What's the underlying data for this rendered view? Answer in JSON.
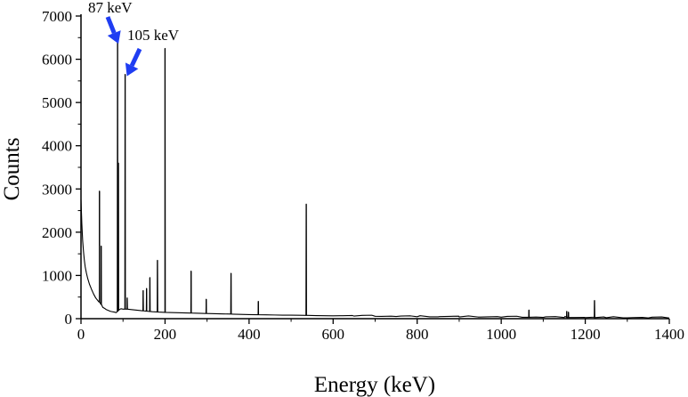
{
  "chart_data": {
    "type": "line",
    "title": "",
    "xlabel": "Energy (keV)",
    "ylabel": "Counts",
    "xlim": [
      0,
      1400
    ],
    "ylim": [
      0,
      7000
    ],
    "x_ticks": [
      0,
      200,
      400,
      600,
      800,
      1000,
      1200,
      1400
    ],
    "y_ticks": [
      0,
      1000,
      2000,
      3000,
      4000,
      5000,
      6000,
      7000
    ],
    "grid": false,
    "legend": "none",
    "colors": {
      "line": "#000000",
      "arrow": "#1f3df2"
    },
    "background": [
      [
        0,
        2750
      ],
      [
        2,
        2200
      ],
      [
        4,
        1800
      ],
      [
        6,
        1550
      ],
      [
        8,
        1350
      ],
      [
        10,
        1200
      ],
      [
        13,
        1050
      ],
      [
        16,
        930
      ],
      [
        20,
        800
      ],
      [
        25,
        680
      ],
      [
        30,
        570
      ],
      [
        35,
        480
      ],
      [
        40,
        420
      ],
      [
        44,
        380
      ],
      [
        48,
        330
      ],
      [
        52,
        260
      ],
      [
        56,
        240
      ],
      [
        60,
        210
      ],
      [
        65,
        190
      ],
      [
        70,
        170
      ],
      [
        75,
        160
      ],
      [
        80,
        150
      ],
      [
        84,
        140
      ],
      [
        90,
        200
      ],
      [
        95,
        230
      ],
      [
        100,
        220
      ],
      [
        110,
        220
      ],
      [
        120,
        210
      ],
      [
        130,
        200
      ],
      [
        140,
        190
      ],
      [
        150,
        180
      ],
      [
        160,
        170
      ],
      [
        170,
        160
      ],
      [
        180,
        155
      ],
      [
        190,
        150
      ],
      [
        200,
        145
      ],
      [
        220,
        140
      ],
      [
        240,
        135
      ],
      [
        260,
        130
      ],
      [
        280,
        125
      ],
      [
        300,
        120
      ],
      [
        320,
        115
      ],
      [
        340,
        110
      ],
      [
        360,
        105
      ],
      [
        380,
        100
      ],
      [
        400,
        95
      ],
      [
        420,
        92
      ],
      [
        440,
        88
      ],
      [
        460,
        85
      ],
      [
        480,
        82
      ],
      [
        500,
        80
      ],
      [
        520,
        78
      ],
      [
        540,
        75
      ],
      [
        560,
        70
      ],
      [
        600,
        65
      ],
      [
        650,
        60
      ],
      [
        700,
        55
      ],
      [
        750,
        50
      ],
      [
        800,
        45
      ],
      [
        850,
        42
      ],
      [
        900,
        40
      ],
      [
        950,
        38
      ],
      [
        1000,
        35
      ],
      [
        1050,
        32
      ],
      [
        1100,
        30
      ],
      [
        1150,
        28
      ],
      [
        1200,
        25
      ],
      [
        1250,
        22
      ],
      [
        1300,
        20
      ],
      [
        1350,
        18
      ],
      [
        1400,
        15
      ]
    ],
    "peaks": [
      {
        "x": 44,
        "y": 2950
      },
      {
        "x": 48,
        "y": 1680
      },
      {
        "x": 87,
        "y": 6400
      },
      {
        "x": 89,
        "y": 3600
      },
      {
        "x": 105,
        "y": 5650
      },
      {
        "x": 110,
        "y": 480
      },
      {
        "x": 148,
        "y": 650
      },
      {
        "x": 156,
        "y": 700
      },
      {
        "x": 164,
        "y": 950
      },
      {
        "x": 182,
        "y": 1350
      },
      {
        "x": 200,
        "y": 6250
      },
      {
        "x": 262,
        "y": 1100
      },
      {
        "x": 298,
        "y": 450
      },
      {
        "x": 357,
        "y": 1050
      },
      {
        "x": 422,
        "y": 400
      },
      {
        "x": 536,
        "y": 2650
      },
      {
        "x": 1066,
        "y": 200
      },
      {
        "x": 1156,
        "y": 170
      },
      {
        "x": 1160,
        "y": 150
      },
      {
        "x": 1222,
        "y": 420
      }
    ],
    "annotations": [
      {
        "text": "87 keV",
        "x": 87,
        "y": 6400
      },
      {
        "text": "105 keV",
        "x": 105,
        "y": 5650
      }
    ]
  }
}
